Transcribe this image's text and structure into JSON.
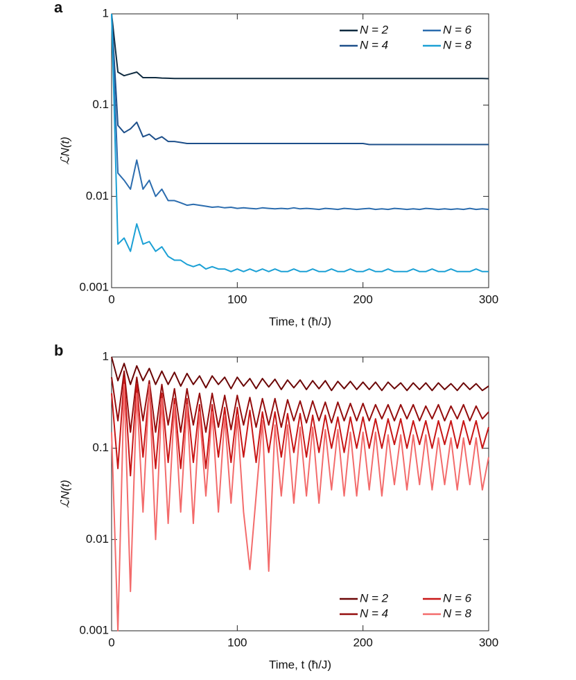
{
  "chart_data": [
    {
      "type": "line",
      "panel_label": "a",
      "x_label": "Time, t (ħ/J)",
      "y_label": "ℒN(t)",
      "log_y": true,
      "legend": "top-right",
      "xlim": [
        0,
        300
      ],
      "xticks": [
        0,
        100,
        200,
        300
      ],
      "ylim": [
        0.001,
        1
      ],
      "yticks": [
        1,
        0.1,
        0.01,
        0.001
      ],
      "x": [
        0,
        5,
        10,
        15,
        20,
        25,
        30,
        35,
        40,
        45,
        50,
        55,
        60,
        65,
        70,
        75,
        80,
        85,
        90,
        95,
        100,
        105,
        110,
        115,
        120,
        125,
        130,
        135,
        140,
        145,
        150,
        155,
        160,
        165,
        170,
        175,
        180,
        185,
        190,
        195,
        200,
        205,
        210,
        215,
        220,
        225,
        230,
        235,
        240,
        245,
        250,
        255,
        260,
        265,
        270,
        275,
        280,
        285,
        290,
        295,
        300
      ],
      "series": [
        {
          "name": "N = 2",
          "color": "#0f2b40",
          "values": [
            1,
            0.23,
            0.21,
            0.22,
            0.23,
            0.2,
            0.2,
            0.2,
            0.198,
            0.197,
            0.196,
            0.196,
            0.196,
            0.196,
            0.196,
            0.196,
            0.196,
            0.196,
            0.196,
            0.196,
            0.196,
            0.196,
            0.196,
            0.196,
            0.196,
            0.196,
            0.196,
            0.196,
            0.196,
            0.196,
            0.196,
            0.196,
            0.196,
            0.196,
            0.196,
            0.196,
            0.196,
            0.196,
            0.196,
            0.196,
            0.196,
            0.196,
            0.196,
            0.196,
            0.196,
            0.196,
            0.196,
            0.196,
            0.196,
            0.196,
            0.196,
            0.196,
            0.196,
            0.196,
            0.196,
            0.196,
            0.196,
            0.196,
            0.196,
            0.196,
            0.195
          ]
        },
        {
          "name": "N = 4",
          "color": "#1d4f8a",
          "values": [
            1,
            0.06,
            0.05,
            0.055,
            0.065,
            0.045,
            0.048,
            0.042,
            0.045,
            0.04,
            0.04,
            0.039,
            0.038,
            0.038,
            0.038,
            0.038,
            0.038,
            0.038,
            0.038,
            0.038,
            0.038,
            0.038,
            0.038,
            0.038,
            0.038,
            0.038,
            0.038,
            0.038,
            0.038,
            0.038,
            0.038,
            0.038,
            0.038,
            0.038,
            0.038,
            0.038,
            0.038,
            0.038,
            0.038,
            0.038,
            0.038,
            0.037,
            0.037,
            0.037,
            0.037,
            0.037,
            0.037,
            0.037,
            0.037,
            0.037,
            0.037,
            0.037,
            0.037,
            0.037,
            0.037,
            0.037,
            0.037,
            0.037,
            0.037,
            0.037,
            0.037
          ]
        },
        {
          "name": "N = 6",
          "color": "#2b6cae",
          "values": [
            1,
            0.018,
            0.015,
            0.012,
            0.025,
            0.012,
            0.015,
            0.01,
            0.012,
            0.009,
            0.009,
            0.0085,
            0.008,
            0.0082,
            0.008,
            0.0078,
            0.0076,
            0.0077,
            0.0075,
            0.0076,
            0.0074,
            0.0075,
            0.0074,
            0.0073,
            0.0075,
            0.0074,
            0.0073,
            0.0074,
            0.0073,
            0.0075,
            0.0073,
            0.0074,
            0.0073,
            0.0072,
            0.0074,
            0.0073,
            0.0072,
            0.0074,
            0.0073,
            0.0072,
            0.0073,
            0.0074,
            0.0072,
            0.0073,
            0.0072,
            0.0074,
            0.0073,
            0.0072,
            0.0073,
            0.0072,
            0.0074,
            0.0073,
            0.0072,
            0.0073,
            0.0072,
            0.0073,
            0.0072,
            0.0074,
            0.0072,
            0.0073,
            0.0072
          ]
        },
        {
          "name": "N = 8",
          "color": "#1ba0d5",
          "values": [
            1,
            0.003,
            0.0035,
            0.0025,
            0.005,
            0.003,
            0.0032,
            0.0025,
            0.0028,
            0.0022,
            0.002,
            0.002,
            0.0018,
            0.0017,
            0.0018,
            0.0016,
            0.0017,
            0.0016,
            0.0016,
            0.0015,
            0.0016,
            0.0015,
            0.0016,
            0.0015,
            0.0016,
            0.0015,
            0.0016,
            0.0015,
            0.0015,
            0.0016,
            0.0015,
            0.0015,
            0.0016,
            0.0015,
            0.0015,
            0.0016,
            0.0015,
            0.0015,
            0.0016,
            0.0015,
            0.0015,
            0.0016,
            0.0015,
            0.0015,
            0.0016,
            0.0015,
            0.0015,
            0.0015,
            0.0016,
            0.0015,
            0.0015,
            0.0016,
            0.0015,
            0.0015,
            0.0016,
            0.0015,
            0.0015,
            0.0015,
            0.0016,
            0.0015,
            0.0015
          ]
        }
      ]
    },
    {
      "type": "line",
      "panel_label": "b",
      "x_label": "Time, t (ħ/J)",
      "y_label": "ℒN(t)",
      "log_y": true,
      "legend": "bottom-right",
      "xlim": [
        0,
        300
      ],
      "xticks": [
        0,
        100,
        200,
        300
      ],
      "ylim": [
        0.001,
        1
      ],
      "yticks": [
        1,
        0.1,
        0.01,
        0.001
      ],
      "x": [
        0,
        5,
        10,
        15,
        20,
        25,
        30,
        35,
        40,
        45,
        50,
        55,
        60,
        65,
        70,
        75,
        80,
        85,
        90,
        95,
        100,
        105,
        110,
        115,
        120,
        125,
        130,
        135,
        140,
        145,
        150,
        155,
        160,
        165,
        170,
        175,
        180,
        185,
        190,
        195,
        200,
        205,
        210,
        215,
        220,
        225,
        230,
        235,
        240,
        245,
        250,
        255,
        260,
        265,
        270,
        275,
        280,
        285,
        290,
        295,
        300
      ],
      "series": [
        {
          "name": "N = 2",
          "color": "#6b0505",
          "values": [
            1,
            0.55,
            0.85,
            0.5,
            0.8,
            0.55,
            0.75,
            0.5,
            0.7,
            0.5,
            0.68,
            0.48,
            0.66,
            0.5,
            0.62,
            0.46,
            0.62,
            0.5,
            0.6,
            0.45,
            0.6,
            0.48,
            0.58,
            0.45,
            0.58,
            0.47,
            0.57,
            0.44,
            0.56,
            0.46,
            0.56,
            0.44,
            0.55,
            0.45,
            0.55,
            0.43,
            0.54,
            0.45,
            0.54,
            0.44,
            0.53,
            0.44,
            0.53,
            0.43,
            0.53,
            0.45,
            0.52,
            0.43,
            0.52,
            0.44,
            0.52,
            0.43,
            0.52,
            0.44,
            0.51,
            0.43,
            0.52,
            0.44,
            0.51,
            0.43,
            0.48
          ]
        },
        {
          "name": "N = 4",
          "color": "#940d0d",
          "values": [
            0.6,
            0.2,
            0.7,
            0.15,
            0.6,
            0.2,
            0.55,
            0.15,
            0.5,
            0.18,
            0.45,
            0.15,
            0.45,
            0.18,
            0.4,
            0.15,
            0.4,
            0.17,
            0.38,
            0.16,
            0.38,
            0.18,
            0.36,
            0.17,
            0.35,
            0.18,
            0.35,
            0.17,
            0.34,
            0.2,
            0.33,
            0.19,
            0.33,
            0.2,
            0.32,
            0.19,
            0.32,
            0.2,
            0.31,
            0.2,
            0.31,
            0.2,
            0.3,
            0.21,
            0.3,
            0.2,
            0.3,
            0.21,
            0.3,
            0.2,
            0.29,
            0.21,
            0.3,
            0.2,
            0.29,
            0.21,
            0.3,
            0.2,
            0.29,
            0.21,
            0.25
          ]
        },
        {
          "name": "N = 6",
          "color": "#c81616",
          "values": [
            0.4,
            0.06,
            0.6,
            0.05,
            0.5,
            0.08,
            0.45,
            0.06,
            0.4,
            0.07,
            0.35,
            0.06,
            0.35,
            0.07,
            0.3,
            0.06,
            0.3,
            0.08,
            0.28,
            0.07,
            0.28,
            0.08,
            0.26,
            0.07,
            0.25,
            0.09,
            0.25,
            0.08,
            0.24,
            0.09,
            0.24,
            0.08,
            0.23,
            0.09,
            0.23,
            0.1,
            0.22,
            0.09,
            0.22,
            0.1,
            0.22,
            0.1,
            0.21,
            0.1,
            0.21,
            0.11,
            0.21,
            0.1,
            0.2,
            0.11,
            0.2,
            0.1,
            0.2,
            0.11,
            0.2,
            0.1,
            0.2,
            0.11,
            0.2,
            0.1,
            0.17
          ]
        },
        {
          "name": "N = 8",
          "color": "#f36b6b",
          "values": [
            0.15,
            0.001,
            0.5,
            0.0027,
            0.4,
            0.02,
            0.5,
            0.01,
            0.35,
            0.015,
            0.3,
            0.02,
            0.3,
            0.015,
            0.25,
            0.03,
            0.25,
            0.02,
            0.22,
            0.025,
            0.22,
            0.02,
            0.0047,
            0.03,
            0.2,
            0.0045,
            0.18,
            0.03,
            0.18,
            0.025,
            0.17,
            0.03,
            0.17,
            0.025,
            0.16,
            0.035,
            0.16,
            0.03,
            0.15,
            0.03,
            0.15,
            0.035,
            0.15,
            0.03,
            0.14,
            0.04,
            0.14,
            0.035,
            0.14,
            0.04,
            0.14,
            0.035,
            0.13,
            0.04,
            0.13,
            0.035,
            0.13,
            0.04,
            0.13,
            0.035,
            0.08
          ]
        }
      ]
    }
  ]
}
